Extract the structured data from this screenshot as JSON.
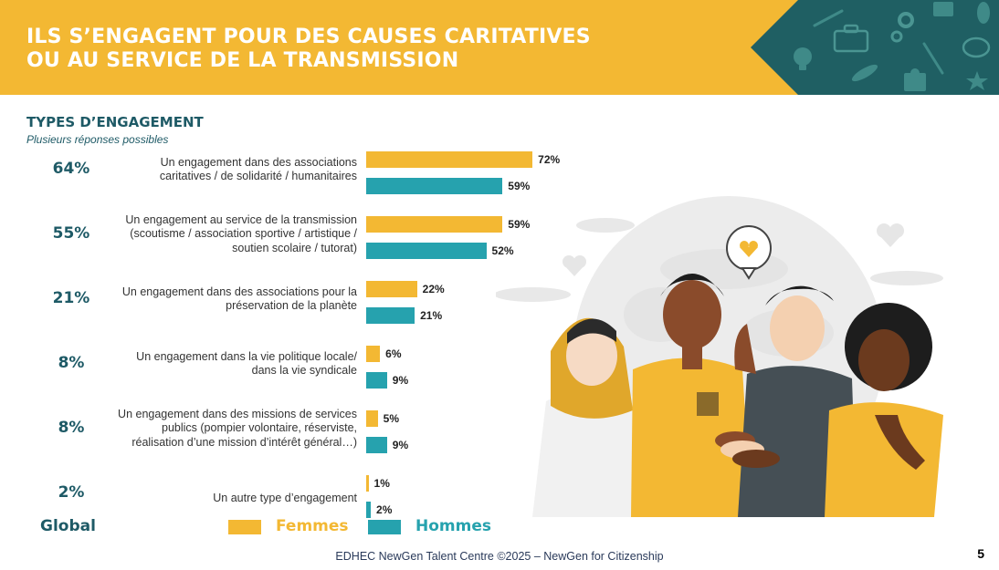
{
  "header": {
    "title_line1": "ILS S’ENGAGENT POUR DES CAUSES CARITATIVES",
    "title_line2": "OU AU SERVICE DE LA TRANSMISSION",
    "background_color": "#f3b833",
    "decoration_color": "#1f5f63"
  },
  "section": {
    "title": "TYPES D’ENGAGEMENT",
    "subtitle": "Plusieurs réponses possibles"
  },
  "global_label": "Global",
  "legend": {
    "femmes": "Femmes",
    "hommes": "Hommes"
  },
  "footer": {
    "text": "EDHEC NewGen Talent Centre ©2025 – NewGen for Citizenship",
    "page": "5"
  },
  "colors": {
    "femmes": "#f3b833",
    "hommes": "#26a2ae",
    "global_text": "#1e5a66"
  },
  "illustration": {
    "icons": [
      "briefcase-icon",
      "gear-icon",
      "lightbulb-icon",
      "pencil-icon",
      "puzzle-icon",
      "star-icon",
      "heart-icon",
      "speech-bubble-icon",
      "globe-icon"
    ]
  },
  "chart_data": {
    "type": "bar",
    "orientation": "horizontal",
    "categories": [
      [
        "Un engagement dans des associations",
        "caritatives / de solidarité / humanitaires"
      ],
      [
        "Un engagement au service de la transmission",
        "(scoutisme / association sportive / artistique /",
        "soutien scolaire / tutorat)"
      ],
      [
        "Un engagement dans des associations pour la",
        "préservation de la planète"
      ],
      [
        "Un engagement dans la vie politique locale/",
        "dans la vie syndicale"
      ],
      [
        "Un engagement dans des missions de services",
        "publics (pompier volontaire, réserviste,",
        "réalisation d’une mission d’intérêt général…)"
      ],
      [
        "Un autre type d’engagement"
      ]
    ],
    "global": [
      "64%",
      "55%",
      "21%",
      "8%",
      "8%",
      "2%"
    ],
    "series": [
      {
        "name": "Femmes",
        "values": [
          72,
          59,
          22,
          6,
          5,
          1
        ],
        "labels": [
          "72%",
          "59%",
          "22%",
          "6%",
          "5%",
          "1%"
        ]
      },
      {
        "name": "Hommes",
        "values": [
          59,
          52,
          21,
          9,
          9,
          2
        ],
        "labels": [
          "59%",
          "52%",
          "21%",
          "9%",
          "9%",
          "2%"
        ]
      }
    ],
    "unit": "%",
    "xlim": [
      0,
      100
    ],
    "legend_position": "bottom",
    "grid": false
  }
}
